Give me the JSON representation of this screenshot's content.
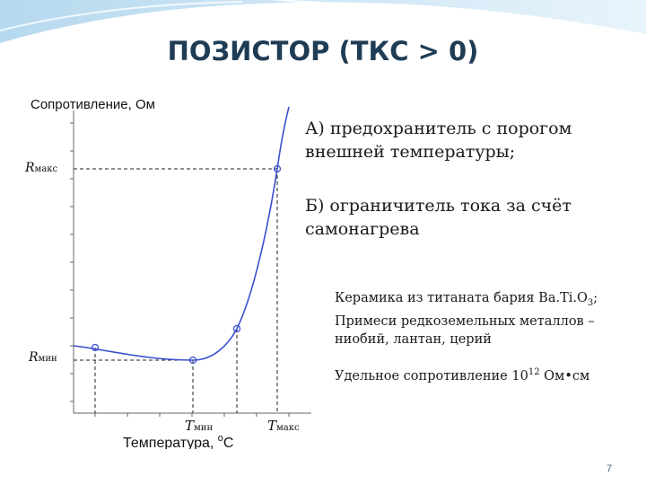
{
  "slide": {
    "title": "ПОЗИСТОР (ТКС > 0)",
    "point_a": "А) предохранитель с порогом внешней температуры;",
    "point_b": "Б) ограничитель тока за счёт самонагрева",
    "ceramics": {
      "prefix": "Керамика из титаната бария Ba.Ti.O",
      "sub": "3",
      "suffix": ";",
      "line2": "Примеси редкоземельных металлов – ниобий, лантан, церий"
    },
    "resistivity": {
      "prefix": "Удельное сопротивление 10",
      "sup": "12",
      "suffix": " Ом•см"
    },
    "page_number": "7"
  },
  "diagram": {
    "y_axis_label": "Сопротивление, Ом",
    "x_axis_label": "Температура, ",
    "x_unit_sup": "o",
    "x_unit": "C",
    "r_max": {
      "main": "R",
      "sub": "макс"
    },
    "r_min": {
      "main": "R",
      "sub": "мин"
    },
    "t_min": {
      "main": "T",
      "sub": "мин"
    },
    "t_max": {
      "main": "T",
      "sub": "макс"
    }
  },
  "colors": {
    "title": "#1f3c55",
    "curve": "#3a4fd0",
    "header_wave": "#cfe6f4"
  }
}
